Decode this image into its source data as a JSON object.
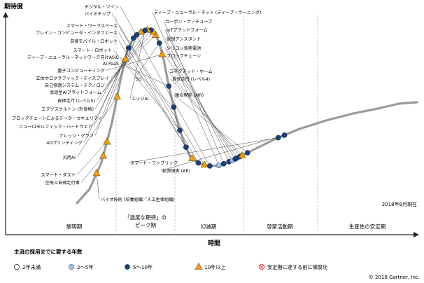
{
  "chart_data": {
    "type": "hype-cycle",
    "ylabel": "期待度",
    "xlabel": "時間",
    "as_of": "2018年8月現在",
    "copyright": "© 2018 Gartner, Inc.",
    "phases": [
      "黎明期",
      "「過度な期待」の\nピーク期",
      "幻滅期",
      "啓蒙活動期",
      "生産性の安定期"
    ],
    "legend_title": "主流の採用までに要する年数",
    "legend": [
      {
        "key": "lt2",
        "label": "2年未満",
        "marker": "circle-white"
      },
      {
        "key": "2to5",
        "label": "2～5年",
        "marker": "circle-lightblue"
      },
      {
        "key": "5to10",
        "label": "5～10年",
        "marker": "circle-navy"
      },
      {
        "key": "gt10",
        "label": "10年以上",
        "marker": "triangle-orange"
      },
      {
        "key": "obsolete",
        "label": "安定期に達する前に陳腐化",
        "marker": "crossed-circle"
      }
    ],
    "colors": {
      "curve": "#9a9a9a",
      "navy": "#1f3f77",
      "lightblue": "#9fc3e6",
      "orange": "#e8a020",
      "obsolete": "#d83838",
      "divider": "#bbbbbb",
      "leader": "#444444"
    },
    "technologies": [
      {
        "name": "デジタル・ツイン",
        "phase": "peak",
        "x": 0.498,
        "years": "5to10"
      },
      {
        "name": "バイオチップ",
        "phase": "peak",
        "x": 0.485,
        "years": "gt10"
      },
      {
        "name": "スマート・ワークスペース",
        "phase": "peak",
        "x": 0.47,
        "years": "5to10"
      },
      {
        "name": "ブレイン・コンピュータ・インタフェース",
        "phase": "peak",
        "x": 0.455,
        "years": "gt10"
      },
      {
        "name": "自律モバイル・ロボット",
        "phase": "peak",
        "x": 0.44,
        "years": "5to10"
      },
      {
        "name": "スマート・ロボット",
        "phase": "peak",
        "x": 0.425,
        "years": "5to10"
      },
      {
        "name": "ディープ・ニューラル・ネットワーク向けASIC",
        "phase": "peak",
        "x": 0.41,
        "years": "5to10"
      },
      {
        "name": "AI PaaS",
        "phase": "peak",
        "x": 0.398,
        "years": "5to10"
      },
      {
        "name": "量子コンピューティング",
        "phase": "rising",
        "x": 0.382,
        "years": "gt10"
      },
      {
        "name": "5G",
        "phase": "rising",
        "x": 0.375,
        "years": "5to10"
      },
      {
        "name": "立体ホログラフィック・ディスプレイ",
        "phase": "rising",
        "x": 0.366,
        "years": "gt10"
      },
      {
        "name": "自己修復システム・テクノロジ",
        "phase": "rising",
        "x": 0.36,
        "years": "gt10"
      },
      {
        "name": "会話型AIプラットフォーム",
        "phase": "rising",
        "x": 0.354,
        "years": "5to10"
      },
      {
        "name": "自律走行 (レベル5)",
        "phase": "rising",
        "x": 0.346,
        "years": "gt10"
      },
      {
        "name": "エッジAI",
        "phase": "rising",
        "x": 0.34,
        "years": "5to10"
      },
      {
        "name": "エクソスケルトン (外骨格)",
        "phase": "rising",
        "x": 0.33,
        "years": "gt10"
      },
      {
        "name": "ブロックチェーンによるデータ・セキュリティ",
        "phase": "rising",
        "x": 0.32,
        "years": "5to10"
      },
      {
        "name": "ニューロモルフィック・ハードウェア",
        "phase": "rising",
        "x": 0.312,
        "years": "5to10"
      },
      {
        "name": "ナレッジ・グラフ",
        "phase": "rising",
        "x": 0.3,
        "years": "5to10"
      },
      {
        "name": "4Dプリンティング",
        "phase": "rising",
        "x": 0.292,
        "years": "gt10"
      },
      {
        "name": "汎用AI",
        "phase": "rising",
        "x": 0.272,
        "years": "gt10"
      },
      {
        "name": "スマート・ダスト",
        "phase": "rising",
        "x": 0.247,
        "years": "gt10"
      },
      {
        "name": "空飛ぶ自律走行車",
        "phase": "rising",
        "x": 0.238,
        "years": "gt10"
      },
      {
        "name": "バイオ技術 (培養組織／人工生体組織)",
        "phase": "rising",
        "x": 0.222,
        "years": "gt10"
      },
      {
        "name": "ディープ・ニューラル・ネット (ディープ・ラーニング)",
        "phase": "peak",
        "x": 0.52,
        "years": "2to5"
      },
      {
        "name": "カーボン・ナノチューブ",
        "phase": "trough",
        "x": 0.532,
        "years": "5to10"
      },
      {
        "name": "IoTプラットフォーム",
        "phase": "trough",
        "x": 0.545,
        "years": "5to10"
      },
      {
        "name": "仮想アシスタント",
        "phase": "trough",
        "x": 0.553,
        "years": "2to5"
      },
      {
        "name": "シリコン負極電池",
        "phase": "trough",
        "x": 0.56,
        "years": "5to10"
      },
      {
        "name": "ブロックチェーン",
        "phase": "trough",
        "x": 0.565,
        "years": "5to10"
      },
      {
        "name": "コネクテッド・ホーム",
        "phase": "trough",
        "x": 0.572,
        "years": "5to10"
      },
      {
        "name": "自律走行 (レベル4)",
        "phase": "trough",
        "x": 0.577,
        "years": "gt10"
      },
      {
        "name": "複合現実 (MR)",
        "phase": "trough",
        "x": 0.59,
        "years": "5to10"
      },
      {
        "name": "スマート・ファブリック",
        "phase": "trough",
        "x": 0.665,
        "years": "5to10"
      },
      {
        "name": "拡張現実 (AR)",
        "phase": "trough",
        "x": 0.68,
        "years": "5to10"
      }
    ]
  }
}
